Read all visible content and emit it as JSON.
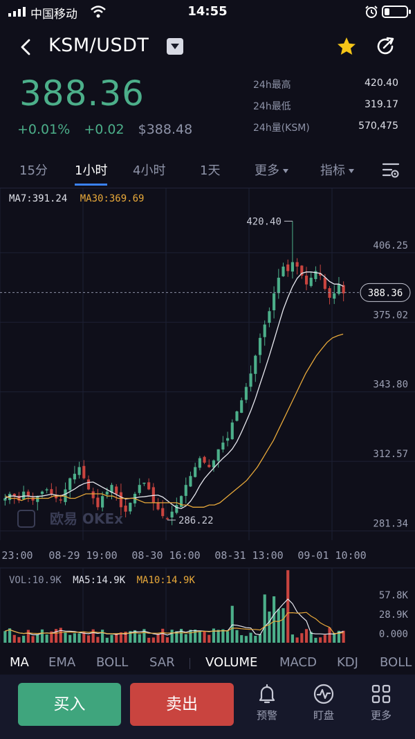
{
  "status_bar": {
    "carrier": "中国移动",
    "time": "14:55"
  },
  "header": {
    "pair": "KSM/USDT",
    "icons": [
      "back-icon",
      "dropdown-icon",
      "star-icon",
      "share-icon"
    ],
    "star_color": "#f5c518"
  },
  "ticker": {
    "price": "388.36",
    "change_pct": "+0.01%",
    "change_abs": "+0.02",
    "usd_price": "$388.48",
    "stats": [
      {
        "label": "24h最高",
        "value": "420.40"
      },
      {
        "label": "24h最低",
        "value": "319.17"
      },
      {
        "label": "24h量(KSM)",
        "value": "570,475"
      }
    ]
  },
  "intervals": {
    "items": [
      "15分",
      "1小时",
      "4小时",
      "1天",
      "更多",
      "指标"
    ],
    "active": "1小时"
  },
  "chart": {
    "ma7_label": "MA7:391.24",
    "ma30_label": "MA30:369.69",
    "high_label": "420.40",
    "low_label": "286.22",
    "current_price_label": "388.36",
    "watermark": "欧易 OKEx",
    "y_axis": [
      "406.25",
      "375.02",
      "343.80",
      "312.57",
      "281.34"
    ],
    "x_axis": [
      "23:00",
      "08-29 19:00",
      "08-30 16:00",
      "08-31 13:00",
      "09-01 10:00"
    ],
    "up_color": "#4caf8a",
    "down_color": "#c9443f"
  },
  "chart_data": {
    "type": "candlestick",
    "ylim": [
      275,
      432
    ],
    "high": 420.4,
    "low": 286.22,
    "last": 388.36,
    "close_path": [
      296,
      298,
      297,
      295,
      299,
      297,
      295,
      297,
      299,
      300,
      298,
      296,
      295,
      300,
      305,
      307,
      310,
      305,
      300,
      296,
      292,
      297,
      299,
      302,
      298,
      292,
      290,
      294,
      298,
      302,
      303,
      300,
      294,
      291,
      288,
      287,
      290,
      293,
      297,
      302,
      306,
      310,
      314,
      312,
      310,
      313,
      318,
      321,
      323,
      330,
      335,
      340,
      346,
      352,
      360,
      368,
      374,
      380,
      388,
      395,
      400,
      398,
      402,
      400,
      396,
      392,
      395,
      398,
      396,
      390,
      386,
      388,
      392,
      388
    ],
    "ma30_path": [
      297,
      296,
      296,
      295,
      296,
      296,
      296,
      296,
      296,
      297,
      297,
      297,
      296,
      296,
      297,
      298,
      298,
      298,
      298,
      297,
      297,
      296,
      296,
      296,
      296,
      295,
      294,
      294,
      294,
      294,
      294,
      294,
      294,
      293,
      293,
      292,
      292,
      292,
      293,
      293,
      294,
      296,
      298,
      300,
      302,
      304,
      307,
      310,
      314,
      318,
      322,
      327,
      332,
      337,
      342,
      347,
      352,
      356,
      360,
      363,
      366,
      368,
      369,
      369.69
    ]
  },
  "volume": {
    "vol_label": "VOL:10.9K",
    "ma5_label": "MA5:14.9K",
    "ma10_label": "MA10:14.9K",
    "y_axis": [
      "57.8K",
      "28.9K",
      "0.000"
    ]
  },
  "indicator_tabs": {
    "main": [
      "MA",
      "EMA",
      "BOLL",
      "SAR"
    ],
    "sub": [
      "VOLUME",
      "MACD",
      "KDJ",
      "BOLL"
    ],
    "active_main": "MA",
    "active_sub": "VOLUME"
  },
  "bottom_bar": {
    "buy": "买入",
    "sell": "卖出",
    "tools": [
      {
        "label": "预警",
        "icon": "bell-icon"
      },
      {
        "label": "盯盘",
        "icon": "pulse-icon"
      },
      {
        "label": "更多",
        "icon": "grid-icon"
      }
    ]
  }
}
